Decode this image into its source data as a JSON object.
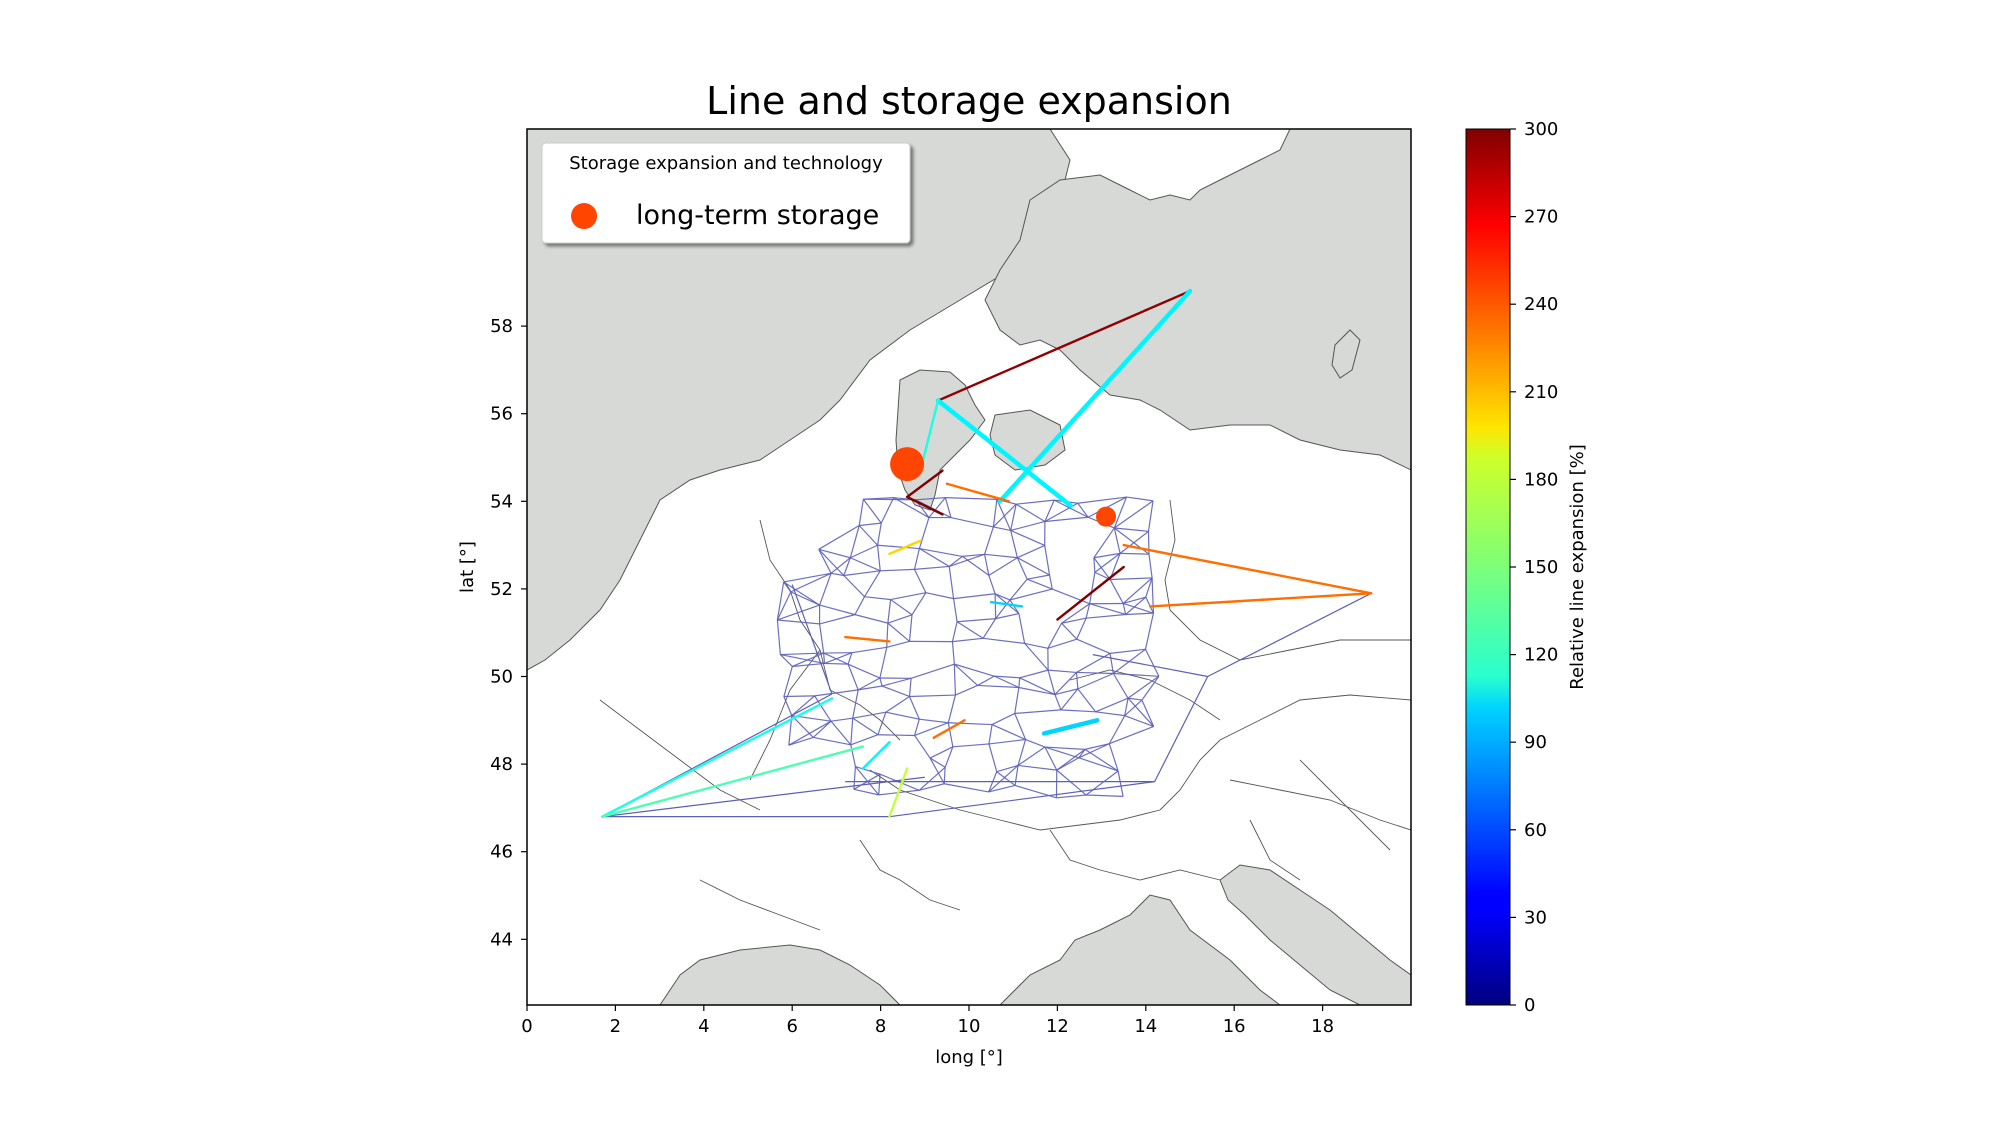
{
  "title": "Line and storage expansion",
  "legend": {
    "title": "Storage expansion and technology",
    "item_label": "long-term storage",
    "marker_color": "#ff4500"
  },
  "xaxis": {
    "label": "long [°]",
    "range": [
      0,
      20
    ],
    "ticks": [
      "0",
      "2",
      "4",
      "6",
      "8",
      "10",
      "12",
      "14",
      "16",
      "18"
    ]
  },
  "yaxis": {
    "label": "lat [°]",
    "range": [
      42.5,
      62.5
    ],
    "ticks": [
      "44",
      "46",
      "48",
      "50",
      "52",
      "54",
      "56",
      "58"
    ]
  },
  "colorbar": {
    "label": "Relative line expansion [%]",
    "range": [
      0,
      300
    ],
    "ticks": [
      "0",
      "30",
      "60",
      "90",
      "120",
      "150",
      "180",
      "210",
      "240",
      "270",
      "300"
    ],
    "colormap": "jet"
  },
  "colors": {
    "land": "#d6d9d6",
    "coast": "#555555",
    "base_line": "#5b5fb8",
    "cyan": "#2ef0f0"
  },
  "chart_data": {
    "type": "network-map",
    "storage_units": [
      {
        "technology": "long-term storage",
        "lon": 8.6,
        "lat": 54.85,
        "size": "large"
      },
      {
        "technology": "long-term storage",
        "lon": 13.1,
        "lat": 53.65,
        "size": "small"
      }
    ],
    "expanded_lines": [
      {
        "from": [
          9.3,
          56.3
        ],
        "to": [
          15.0,
          58.8
        ],
        "expansion_pct": 295
      },
      {
        "from": [
          9.3,
          56.3
        ],
        "to": [
          12.3,
          53.9
        ],
        "expansion_pct": 110
      },
      {
        "from": [
          10.7,
          54.0
        ],
        "to": [
          15.0,
          58.8
        ],
        "expansion_pct": 110
      },
      {
        "from": [
          8.9,
          54.7
        ],
        "to": [
          9.3,
          56.3
        ],
        "expansion_pct": 120
      },
      {
        "from": [
          8.6,
          54.1
        ],
        "to": [
          9.4,
          54.7
        ],
        "expansion_pct": 300
      },
      {
        "from": [
          8.6,
          54.1
        ],
        "to": [
          9.4,
          53.7
        ],
        "expansion_pct": 300
      },
      {
        "from": [
          12.0,
          51.3
        ],
        "to": [
          13.5,
          52.5
        ],
        "expansion_pct": 300
      },
      {
        "from": [
          9.5,
          54.4
        ],
        "to": [
          10.9,
          54.0
        ],
        "expansion_pct": 230
      },
      {
        "from": [
          13.5,
          53.0
        ],
        "to": [
          19.1,
          51.9
        ],
        "expansion_pct": 230
      },
      {
        "from": [
          14.1,
          51.6
        ],
        "to": [
          19.1,
          51.9
        ],
        "expansion_pct": 230
      },
      {
        "from": [
          7.2,
          50.9
        ],
        "to": [
          8.2,
          50.8
        ],
        "expansion_pct": 230
      },
      {
        "from": [
          9.2,
          48.6
        ],
        "to": [
          9.9,
          49.0
        ],
        "expansion_pct": 230
      },
      {
        "from": [
          8.2,
          52.8
        ],
        "to": [
          8.9,
          53.1
        ],
        "expansion_pct": 200
      },
      {
        "from": [
          8.2,
          46.8
        ],
        "to": [
          8.6,
          47.9
        ],
        "expansion_pct": 170
      },
      {
        "from": [
          1.7,
          46.8
        ],
        "to": [
          6.9,
          49.5
        ],
        "expansion_pct": 120
      },
      {
        "from": [
          1.7,
          46.8
        ],
        "to": [
          7.6,
          48.4
        ],
        "expansion_pct": 135
      },
      {
        "from": [
          7.6,
          47.9
        ],
        "to": [
          8.2,
          48.5
        ],
        "expansion_pct": 110
      },
      {
        "from": [
          10.5,
          51.7
        ],
        "to": [
          11.2,
          51.6
        ],
        "expansion_pct": 100
      },
      {
        "from": [
          11.7,
          48.7
        ],
        "to": [
          12.9,
          49.0
        ],
        "expansion_pct": 100
      }
    ],
    "base_network_expansion_pct": 40,
    "external_nodes_lonlat": [
      [
        1.7,
        46.8
      ],
      [
        19.1,
        51.9
      ],
      [
        15.0,
        58.8
      ],
      [
        14.2,
        47.6
      ]
    ]
  }
}
